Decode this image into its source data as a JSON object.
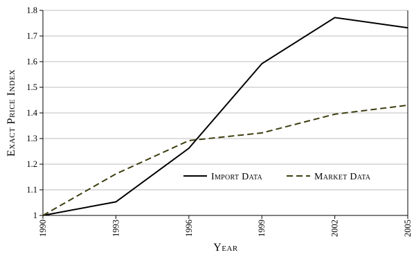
{
  "chart_data": {
    "type": "line",
    "xlabel": "Year",
    "ylabel": "Exact Price Index",
    "x": [
      1990,
      1993,
      1996,
      1999,
      2002,
      2005
    ],
    "xlim": [
      1990,
      2005
    ],
    "ylim": [
      1,
      1.8
    ],
    "x_ticks": [
      "1990",
      "1993",
      "1996",
      "1999",
      "2002",
      "2005"
    ],
    "y_ticks": [
      "1",
      "1.1",
      "1.2",
      "1.3",
      "1.4",
      "1.5",
      "1.6",
      "1.7",
      "1.8"
    ],
    "grid": "horizontal",
    "legend_position": "center-right",
    "series": [
      {
        "name": "Import Data",
        "values": [
          1.0,
          1.053,
          1.262,
          1.592,
          1.772,
          1.732
        ],
        "color": "#000000",
        "style": "solid"
      },
      {
        "name": "Market Data",
        "values": [
          1.0,
          1.162,
          1.292,
          1.322,
          1.395,
          1.43
        ],
        "color": "#3d3d10",
        "style": "dashed"
      }
    ]
  }
}
